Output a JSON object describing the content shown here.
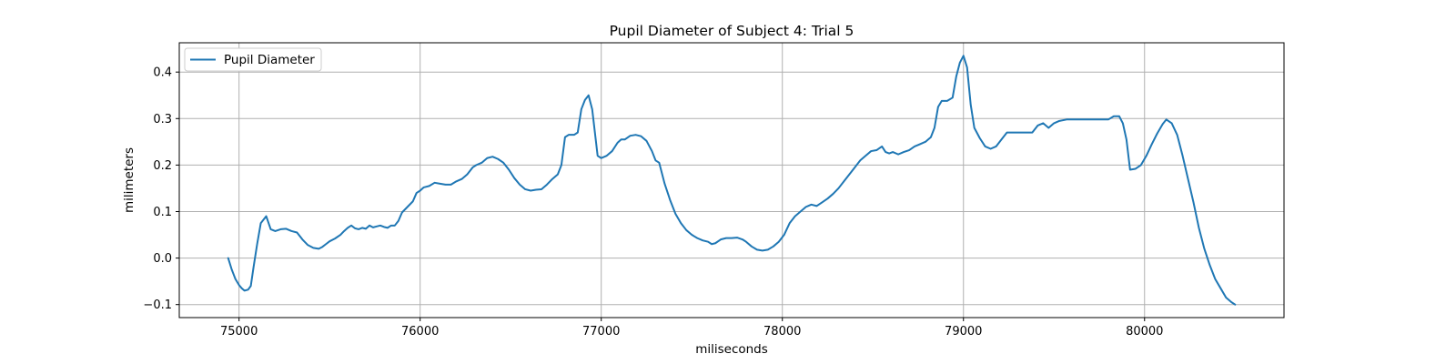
{
  "chart_data": {
    "type": "line",
    "title": "Pupil Diameter of Subject 4: Trial 5",
    "xlabel": "miliseconds",
    "ylabel": "milimeters",
    "xlim": [
      74670,
      80770
    ],
    "ylim": [
      -0.128,
      0.463
    ],
    "xticks": [
      75000,
      76000,
      77000,
      78000,
      79000,
      80000
    ],
    "yticks": [
      -0.1,
      0.0,
      0.1,
      0.2,
      0.3,
      0.4
    ],
    "ytick_labels": [
      "−0.1",
      "0.0",
      "0.1",
      "0.2",
      "0.3",
      "0.4"
    ],
    "grid": true,
    "legend_position": "upper-left",
    "series": [
      {
        "name": "Pupil Diameter",
        "color": "#1f77b4",
        "points": [
          [
            74940,
            0.0
          ],
          [
            74960,
            -0.025
          ],
          [
            74980,
            -0.045
          ],
          [
            75000,
            -0.058
          ],
          [
            75015,
            -0.065
          ],
          [
            75030,
            -0.07
          ],
          [
            75050,
            -0.068
          ],
          [
            75065,
            -0.06
          ],
          [
            75080,
            -0.02
          ],
          [
            75100,
            0.03
          ],
          [
            75120,
            0.075
          ],
          [
            75150,
            0.09
          ],
          [
            75175,
            0.062
          ],
          [
            75200,
            0.058
          ],
          [
            75230,
            0.062
          ],
          [
            75260,
            0.063
          ],
          [
            75290,
            0.058
          ],
          [
            75320,
            0.055
          ],
          [
            75350,
            0.04
          ],
          [
            75380,
            0.028
          ],
          [
            75410,
            0.022
          ],
          [
            75440,
            0.02
          ],
          [
            75460,
            0.024
          ],
          [
            75480,
            0.03
          ],
          [
            75500,
            0.036
          ],
          [
            75530,
            0.042
          ],
          [
            75560,
            0.05
          ],
          [
            75580,
            0.058
          ],
          [
            75600,
            0.065
          ],
          [
            75620,
            0.07
          ],
          [
            75640,
            0.064
          ],
          [
            75660,
            0.062
          ],
          [
            75680,
            0.065
          ],
          [
            75700,
            0.063
          ],
          [
            75720,
            0.07
          ],
          [
            75740,
            0.066
          ],
          [
            75760,
            0.068
          ],
          [
            75780,
            0.07
          ],
          [
            75800,
            0.067
          ],
          [
            75820,
            0.065
          ],
          [
            75840,
            0.07
          ],
          [
            75860,
            0.07
          ],
          [
            75880,
            0.08
          ],
          [
            75900,
            0.098
          ],
          [
            75930,
            0.11
          ],
          [
            75960,
            0.122
          ],
          [
            75980,
            0.14
          ],
          [
            76000,
            0.145
          ],
          [
            76020,
            0.152
          ],
          [
            76050,
            0.155
          ],
          [
            76080,
            0.162
          ],
          [
            76110,
            0.16
          ],
          [
            76140,
            0.158
          ],
          [
            76170,
            0.158
          ],
          [
            76200,
            0.165
          ],
          [
            76230,
            0.17
          ],
          [
            76260,
            0.18
          ],
          [
            76290,
            0.195
          ],
          [
            76310,
            0.2
          ],
          [
            76340,
            0.205
          ],
          [
            76370,
            0.215
          ],
          [
            76400,
            0.218
          ],
          [
            76430,
            0.213
          ],
          [
            76460,
            0.205
          ],
          [
            76490,
            0.19
          ],
          [
            76520,
            0.172
          ],
          [
            76550,
            0.158
          ],
          [
            76580,
            0.148
          ],
          [
            76610,
            0.145
          ],
          [
            76640,
            0.147
          ],
          [
            76670,
            0.148
          ],
          [
            76700,
            0.158
          ],
          [
            76730,
            0.17
          ],
          [
            76760,
            0.18
          ],
          [
            76780,
            0.2
          ],
          [
            76800,
            0.26
          ],
          [
            76820,
            0.265
          ],
          [
            76850,
            0.265
          ],
          [
            76870,
            0.27
          ],
          [
            76890,
            0.32
          ],
          [
            76910,
            0.34
          ],
          [
            76930,
            0.35
          ],
          [
            76950,
            0.32
          ],
          [
            76965,
            0.27
          ],
          [
            76980,
            0.22
          ],
          [
            77000,
            0.215
          ],
          [
            77030,
            0.22
          ],
          [
            77060,
            0.23
          ],
          [
            77090,
            0.248
          ],
          [
            77110,
            0.255
          ],
          [
            77130,
            0.255
          ],
          [
            77160,
            0.263
          ],
          [
            77190,
            0.265
          ],
          [
            77220,
            0.262
          ],
          [
            77250,
            0.252
          ],
          [
            77280,
            0.23
          ],
          [
            77300,
            0.21
          ],
          [
            77320,
            0.205
          ],
          [
            77350,
            0.16
          ],
          [
            77380,
            0.125
          ],
          [
            77410,
            0.095
          ],
          [
            77440,
            0.075
          ],
          [
            77470,
            0.06
          ],
          [
            77500,
            0.05
          ],
          [
            77530,
            0.043
          ],
          [
            77560,
            0.038
          ],
          [
            77590,
            0.035
          ],
          [
            77610,
            0.03
          ],
          [
            77630,
            0.032
          ],
          [
            77660,
            0.04
          ],
          [
            77690,
            0.043
          ],
          [
            77720,
            0.043
          ],
          [
            77750,
            0.044
          ],
          [
            77780,
            0.04
          ],
          [
            77800,
            0.035
          ],
          [
            77830,
            0.025
          ],
          [
            77860,
            0.018
          ],
          [
            77890,
            0.016
          ],
          [
            77920,
            0.018
          ],
          [
            77950,
            0.025
          ],
          [
            77980,
            0.035
          ],
          [
            78010,
            0.05
          ],
          [
            78040,
            0.075
          ],
          [
            78070,
            0.09
          ],
          [
            78100,
            0.1
          ],
          [
            78130,
            0.11
          ],
          [
            78160,
            0.115
          ],
          [
            78190,
            0.112
          ],
          [
            78220,
            0.12
          ],
          [
            78250,
            0.128
          ],
          [
            78280,
            0.138
          ],
          [
            78310,
            0.15
          ],
          [
            78340,
            0.165
          ],
          [
            78370,
            0.18
          ],
          [
            78400,
            0.195
          ],
          [
            78430,
            0.21
          ],
          [
            78460,
            0.22
          ],
          [
            78490,
            0.23
          ],
          [
            78520,
            0.232
          ],
          [
            78550,
            0.24
          ],
          [
            78570,
            0.228
          ],
          [
            78590,
            0.225
          ],
          [
            78610,
            0.228
          ],
          [
            78640,
            0.223
          ],
          [
            78670,
            0.228
          ],
          [
            78700,
            0.232
          ],
          [
            78730,
            0.24
          ],
          [
            78760,
            0.245
          ],
          [
            78790,
            0.25
          ],
          [
            78820,
            0.26
          ],
          [
            78840,
            0.28
          ],
          [
            78860,
            0.325
          ],
          [
            78880,
            0.338
          ],
          [
            78910,
            0.338
          ],
          [
            78940,
            0.345
          ],
          [
            78960,
            0.39
          ],
          [
            78980,
            0.42
          ],
          [
            79000,
            0.435
          ],
          [
            79020,
            0.41
          ],
          [
            79040,
            0.33
          ],
          [
            79060,
            0.28
          ],
          [
            79090,
            0.258
          ],
          [
            79120,
            0.24
          ],
          [
            79150,
            0.235
          ],
          [
            79180,
            0.24
          ],
          [
            79210,
            0.255
          ],
          [
            79240,
            0.27
          ],
          [
            79270,
            0.27
          ],
          [
            79310,
            0.27
          ],
          [
            79350,
            0.27
          ],
          [
            79380,
            0.27
          ],
          [
            79410,
            0.285
          ],
          [
            79440,
            0.29
          ],
          [
            79470,
            0.28
          ],
          [
            79500,
            0.29
          ],
          [
            79530,
            0.295
          ],
          [
            79570,
            0.298
          ],
          [
            79620,
            0.298
          ],
          [
            79680,
            0.298
          ],
          [
            79740,
            0.298
          ],
          [
            79800,
            0.298
          ],
          [
            79830,
            0.305
          ],
          [
            79860,
            0.305
          ],
          [
            79880,
            0.29
          ],
          [
            79900,
            0.255
          ],
          [
            79920,
            0.19
          ],
          [
            79950,
            0.192
          ],
          [
            79980,
            0.2
          ],
          [
            80010,
            0.22
          ],
          [
            80040,
            0.245
          ],
          [
            80070,
            0.268
          ],
          [
            80100,
            0.288
          ],
          [
            80120,
            0.298
          ],
          [
            80150,
            0.29
          ],
          [
            80180,
            0.265
          ],
          [
            80210,
            0.22
          ],
          [
            80240,
            0.17
          ],
          [
            80270,
            0.12
          ],
          [
            80300,
            0.065
          ],
          [
            80330,
            0.02
          ],
          [
            80360,
            -0.015
          ],
          [
            80390,
            -0.045
          ],
          [
            80420,
            -0.065
          ],
          [
            80450,
            -0.085
          ],
          [
            80480,
            -0.095
          ],
          [
            80500,
            -0.1
          ]
        ]
      }
    ]
  }
}
